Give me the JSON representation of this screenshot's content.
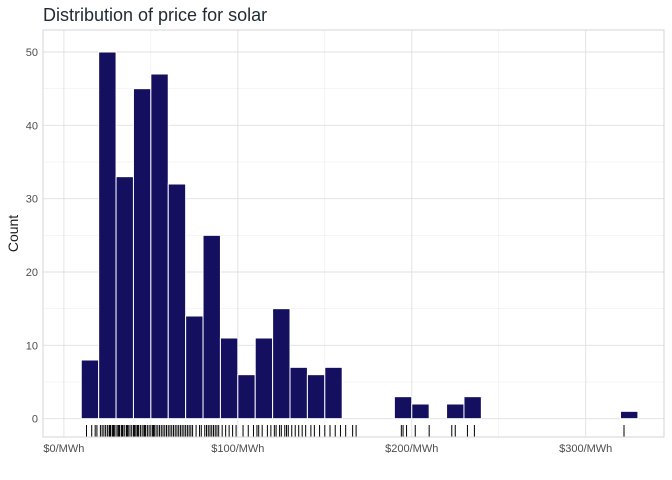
{
  "chart_data": {
    "type": "bar",
    "title": "Distribution of price for solar",
    "xlabel": "",
    "ylabel": "Count",
    "xlim": [
      -12,
      345
    ],
    "ylim": [
      -2.5,
      53
    ],
    "x_ticks": [
      0,
      100,
      200,
      300
    ],
    "x_tick_labels": [
      "$0/MWh",
      "$100/MWh",
      "$200/MWh",
      "$300/MWh"
    ],
    "y_ticks": [
      0,
      10,
      20,
      30,
      40,
      50
    ],
    "y_tick_labels": [
      "0",
      "10",
      "20",
      "30",
      "40",
      "50"
    ],
    "bin_width": 10,
    "bins": [
      {
        "start": 10,
        "count": 8
      },
      {
        "start": 20,
        "count": 50
      },
      {
        "start": 30,
        "count": 33
      },
      {
        "start": 40,
        "count": 45
      },
      {
        "start": 50,
        "count": 47
      },
      {
        "start": 60,
        "count": 32
      },
      {
        "start": 70,
        "count": 14
      },
      {
        "start": 80,
        "count": 25
      },
      {
        "start": 90,
        "count": 11
      },
      {
        "start": 100,
        "count": 6
      },
      {
        "start": 110,
        "count": 11
      },
      {
        "start": 120,
        "count": 15
      },
      {
        "start": 130,
        "count": 7
      },
      {
        "start": 140,
        "count": 6
      },
      {
        "start": 150,
        "count": 7
      },
      {
        "start": 190,
        "count": 3
      },
      {
        "start": 200,
        "count": 2
      },
      {
        "start": 220,
        "count": 2
      },
      {
        "start": 230,
        "count": 3
      },
      {
        "start": 320,
        "count": 1
      }
    ],
    "rug_values": [
      13,
      16,
      18,
      19,
      21,
      22,
      23,
      24,
      25,
      26,
      26.5,
      27,
      28,
      28.5,
      29,
      30,
      31,
      31.5,
      32,
      33,
      33.5,
      34,
      35,
      36,
      36.5,
      37,
      38,
      39,
      40,
      40.5,
      41,
      42,
      42.5,
      43,
      44,
      45,
      46,
      46.5,
      47,
      48,
      49,
      50,
      51,
      51.5,
      52,
      53,
      54,
      55,
      56,
      57,
      58,
      59,
      60,
      61,
      62,
      63,
      64,
      65,
      66,
      67,
      68,
      69,
      70,
      71,
      72,
      73,
      74,
      76,
      78,
      79,
      81,
      82,
      83,
      84,
      85,
      86,
      87,
      88,
      89,
      91,
      93,
      95,
      97,
      99,
      103,
      106,
      109,
      111,
      112,
      114,
      117,
      119,
      121,
      122,
      124,
      125,
      127,
      128,
      129,
      131,
      133,
      135,
      137,
      139,
      142,
      144,
      147,
      150,
      153,
      156,
      159,
      162,
      166,
      168,
      194,
      195,
      197,
      202,
      210,
      223,
      225,
      232,
      236,
      322
    ],
    "grid": true,
    "bar_color": "#140f5e",
    "bar_edge_color": "#ffffff",
    "grid_color": "#ebebeb",
    "panel_border_color": "#d4d4d4"
  }
}
